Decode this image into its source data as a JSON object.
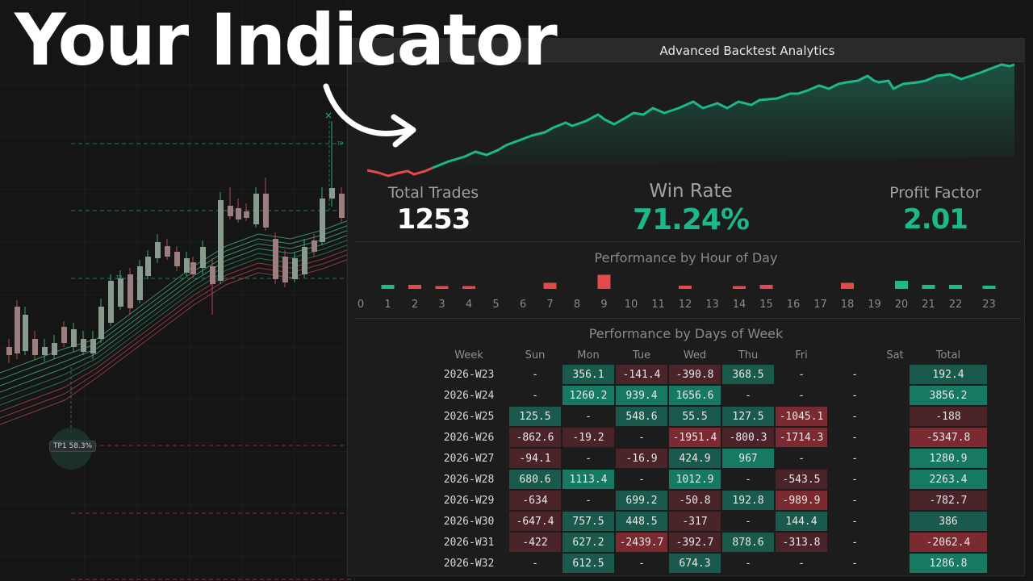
{
  "headline": "Your Indicator",
  "chart_overlay": {
    "tp_badge": "TP1 58.3%",
    "tp_small": "TP"
  },
  "panel": {
    "title": "Advanced Backtest Analytics",
    "stats": {
      "total_trades": {
        "label": "Total Trades",
        "value": "1253"
      },
      "win_rate": {
        "label": "Win Rate",
        "value": "71.24%"
      },
      "profit_factor": {
        "label": "Profit Factor",
        "value": "2.01"
      }
    },
    "hour_section_title": "Performance by Hour of Day",
    "hour_labels": [
      "0",
      "1",
      "2",
      "3",
      "4",
      "5",
      "6",
      "7",
      "8",
      "9",
      "10",
      "11",
      "12",
      "13",
      "14",
      "15",
      "16",
      "17",
      "18",
      "19",
      "20",
      "21",
      "22",
      "23"
    ],
    "hour_values": [
      0,
      1,
      -1,
      -0.7,
      -0.7,
      0,
      0,
      -1.5,
      0,
      -3.5,
      0,
      0,
      -0.8,
      0,
      -0.7,
      -1,
      0,
      0,
      -1.5,
      0,
      2,
      1,
      1,
      0.8
    ],
    "week_section_title": "Performance by Days of Week",
    "week_table": {
      "headers": [
        "Week",
        "Sun",
        "Mon",
        "Tue",
        "Wed",
        "Thu",
        "Fri",
        "Sat",
        "Total"
      ],
      "rows": [
        {
          "week": "2026-W23",
          "cells": [
            "-",
            "356.1",
            "-141.4",
            "-390.8",
            "368.5",
            "-",
            "-"
          ],
          "total": "192.4"
        },
        {
          "week": "2026-W24",
          "cells": [
            "-",
            "1260.2",
            "939.4",
            "1656.6",
            "-",
            "-",
            "-"
          ],
          "total": "3856.2"
        },
        {
          "week": "2026-W25",
          "cells": [
            "125.5",
            "-",
            "548.6",
            "55.5",
            "127.5",
            "-1045.1",
            "-"
          ],
          "total": "-188"
        },
        {
          "week": "2026-W26",
          "cells": [
            "-862.6",
            "-19.2",
            "-",
            "-1951.4",
            "-800.3",
            "-1714.3",
            "-"
          ],
          "total": "-5347.8"
        },
        {
          "week": "2026-W27",
          "cells": [
            "-94.1",
            "-",
            "-16.9",
            "424.9",
            "967",
            "-",
            "-"
          ],
          "total": "1280.9"
        },
        {
          "week": "2026-W28",
          "cells": [
            "680.6",
            "1113.4",
            "-",
            "1012.9",
            "-",
            "-543.5",
            "-"
          ],
          "total": "2263.4"
        },
        {
          "week": "2026-W29",
          "cells": [
            "-634",
            "-",
            "699.2",
            "-50.8",
            "192.8",
            "-989.9",
            "-"
          ],
          "total": "-782.7"
        },
        {
          "week": "2026-W30",
          "cells": [
            "-647.4",
            "757.5",
            "448.5",
            "-317",
            "-",
            "144.4",
            "-"
          ],
          "total": "386"
        },
        {
          "week": "2026-W31",
          "cells": [
            "-422",
            "627.2",
            "-2439.7",
            "-392.7",
            "878.6",
            "-313.8",
            "-"
          ],
          "total": "-2062.4"
        },
        {
          "week": "2026-W32",
          "cells": [
            "-",
            "612.5",
            "-",
            "674.3",
            "-",
            "-",
            "-"
          ],
          "total": "1286.8"
        }
      ]
    }
  },
  "colors": {
    "positive": "#1db88a",
    "negative": "#e5484d",
    "cell_pos_strong": "#167a62",
    "cell_pos": "#1a5a4c",
    "cell_neg_strong": "#7a2a30",
    "cell_neg": "#4a2428"
  }
}
